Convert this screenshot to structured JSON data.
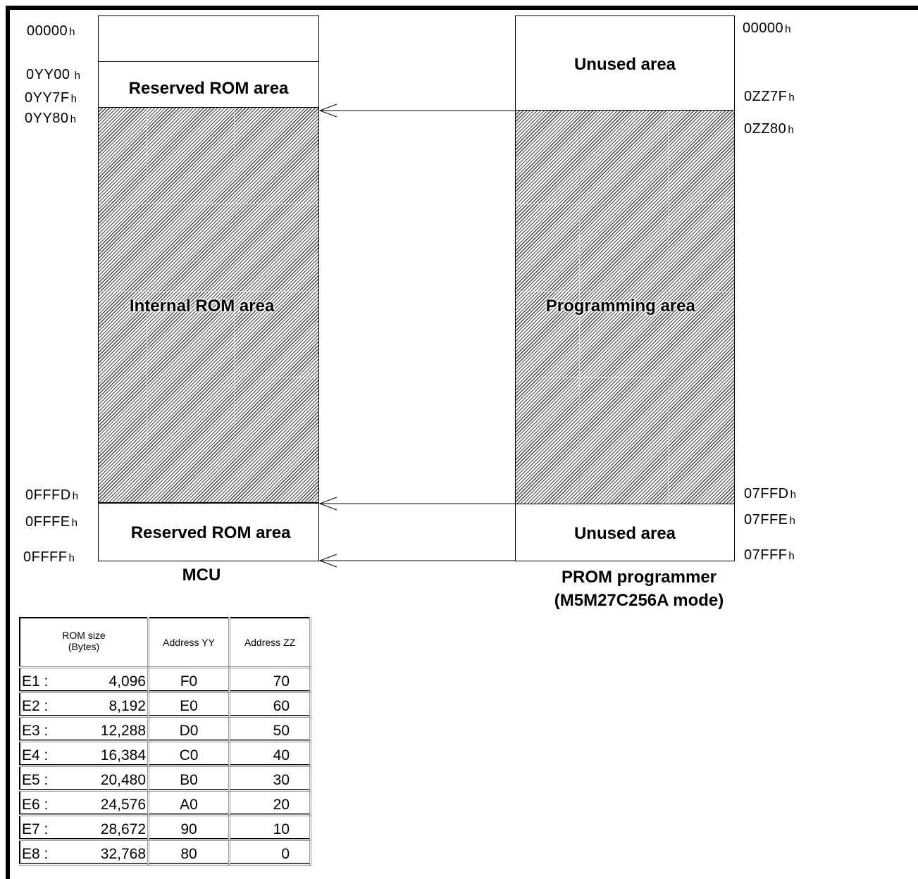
{
  "mcu": {
    "reserved_top_label": "Reserved ROM area",
    "internal_label": "Internal ROM area",
    "reserved_bottom_label": "Reserved ROM area",
    "caption": "MCU",
    "addresses": {
      "a00000": "00000",
      "ayy00": "0YY00",
      "ayy7f": "0YY7F",
      "ayy80": "0YY80",
      "afffd": "0FFFD",
      "afffe": "0FFFE",
      "affff": "0FFFF"
    }
  },
  "prom": {
    "unused_top_label": "Unused area",
    "programming_label": "Programming area",
    "unused_bottom_label": "Unused area",
    "caption_line1": "PROM programmer",
    "caption_line2": "(M5M27C256A mode)",
    "addresses": {
      "a00000": "00000",
      "azz7f": "0ZZ7F",
      "azz80": "0ZZ80",
      "a7ffd": "07FFD",
      "a7ffe": "07FFE",
      "a7fff": "07FFF"
    }
  },
  "hex_suffix": "h",
  "table": {
    "headers": {
      "rom_size": "ROM size\n(Bytes)",
      "address_yy": "Address YY",
      "address_zz": "Address ZZ"
    },
    "rows": [
      {
        "name": "E1 :",
        "size": "4,096",
        "yy": "F0",
        "zz": "70"
      },
      {
        "name": "E2 :",
        "size": "8,192",
        "yy": "E0",
        "zz": "60"
      },
      {
        "name": "E3 :",
        "size": "12,288",
        "yy": "D0",
        "zz": "50"
      },
      {
        "name": "E4 :",
        "size": "16,384",
        "yy": "C0",
        "zz": "40"
      },
      {
        "name": "E5 :",
        "size": "20,480",
        "yy": "B0",
        "zz": "30"
      },
      {
        "name": "E6 :",
        "size": "24,576",
        "yy": "A0",
        "zz": "20"
      },
      {
        "name": "E7 :",
        "size": "28,672",
        "yy": "90",
        "zz": "10"
      },
      {
        "name": "E8 :",
        "size": "32,768",
        "yy": "80",
        "zz": "0"
      }
    ]
  }
}
